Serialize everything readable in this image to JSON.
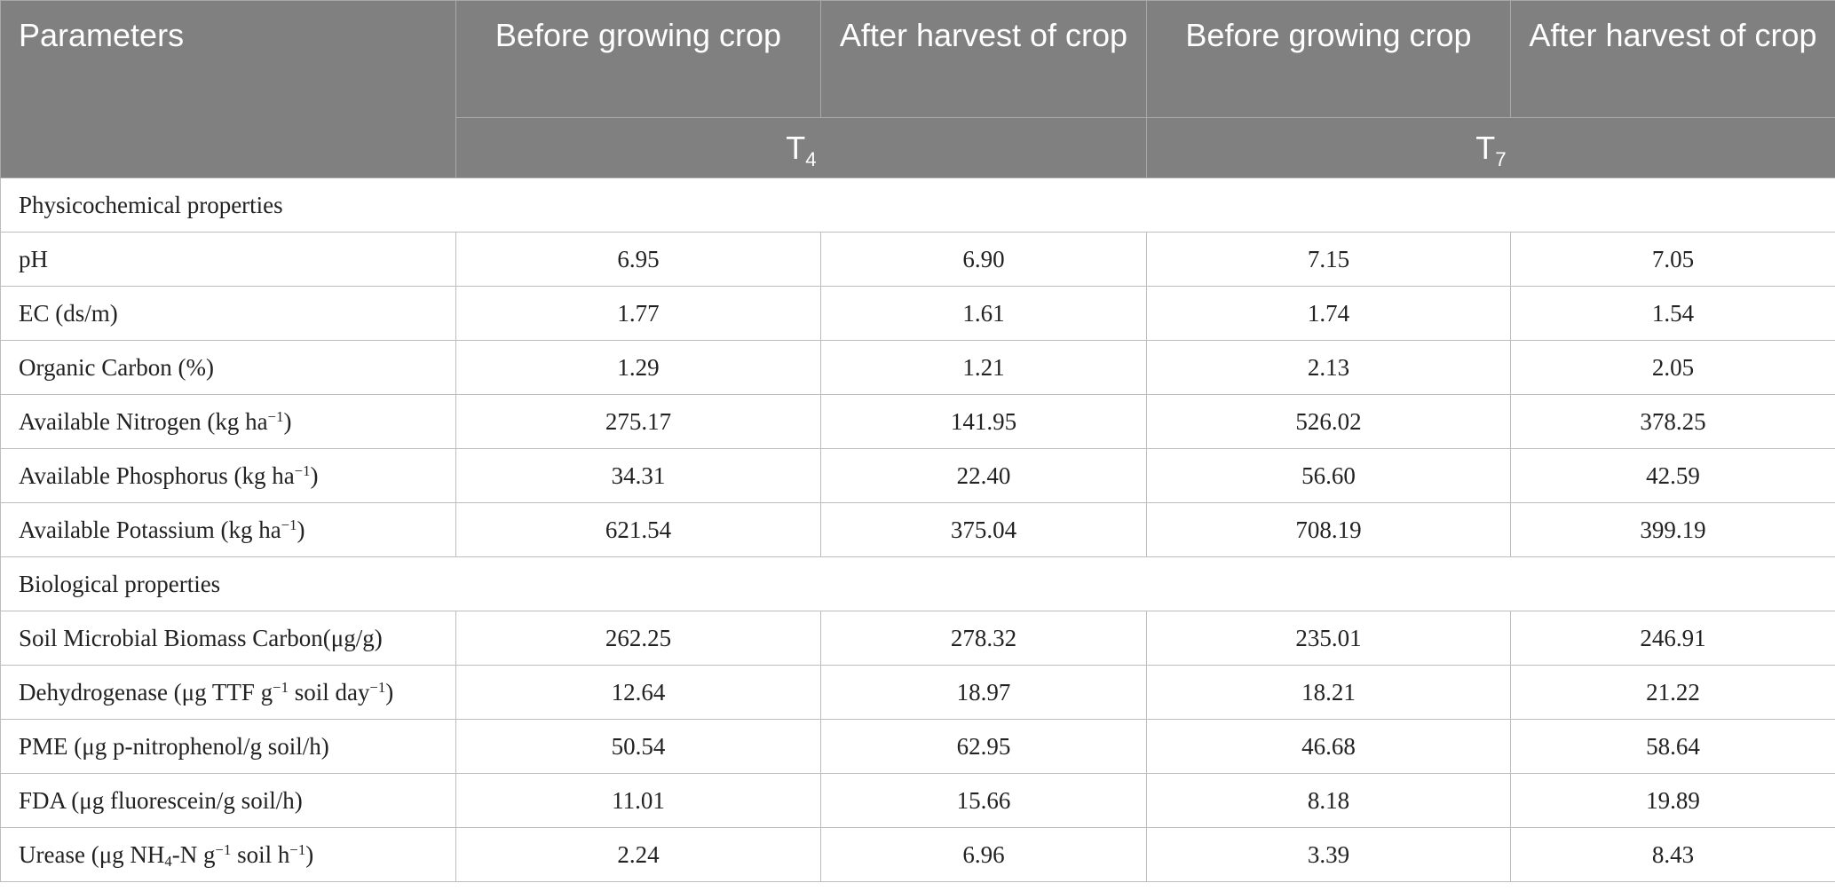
{
  "header": {
    "parameters": "Parameters",
    "col1": "Before growing crop",
    "col2": "After harvest of crop",
    "col3": "Before growing crop",
    "col4": "After harvest of crop",
    "group1_base": "T",
    "group1_sub": "4",
    "group2_base": "T",
    "group2_sub": "7"
  },
  "sections": {
    "physicochemical": "Physicochemical properties",
    "biological": "Biological properties"
  },
  "labels": {
    "ph": "pH",
    "ec": "EC (ds/m)",
    "oc": "Organic Carbon (%)",
    "avail_n_pre": "Available Nitrogen (kg ha",
    "avail_p_pre": "Available Phosphorus (kg ha",
    "avail_k_pre": "Available Potassium (kg ha",
    "exp_neg1": "−1",
    "close": ")",
    "smbc": "Soil Microbial Biomass Carbon(μg/g)",
    "dehyd_pre": "Dehydrogenase (μg TTF g",
    "dehyd_mid": " soil day",
    "pme": "PME (μg p-nitrophenol/g soil/h)",
    "fda": "FDA (μg fluorescein/g soil/h)",
    "urease_pre": "Urease (μg NH",
    "urease_sub": "4",
    "urease_mid1": "-N g",
    "urease_mid2": " soil h"
  },
  "rows": [
    {
      "key": "ph",
      "values": [
        "6.95",
        "6.90",
        "7.15",
        "7.05"
      ]
    },
    {
      "key": "ec",
      "values": [
        "1.77",
        "1.61",
        "1.74",
        "1.54"
      ]
    },
    {
      "key": "oc",
      "values": [
        "1.29",
        "1.21",
        "2.13",
        "2.05"
      ]
    },
    {
      "key": "avail_n",
      "values": [
        "275.17",
        "141.95",
        "526.02",
        "378.25"
      ]
    },
    {
      "key": "avail_p",
      "values": [
        "34.31",
        "22.40",
        "56.60",
        "42.59"
      ]
    },
    {
      "key": "avail_k",
      "values": [
        "621.54",
        "375.04",
        "708.19",
        "399.19"
      ]
    },
    {
      "key": "smbc",
      "values": [
        "262.25",
        "278.32",
        "235.01",
        "246.91"
      ]
    },
    {
      "key": "dehyd",
      "values": [
        "12.64",
        "18.97",
        "18.21",
        "21.22"
      ]
    },
    {
      "key": "pme",
      "values": [
        "50.54",
        "62.95",
        "46.68",
        "58.64"
      ]
    },
    {
      "key": "fda",
      "values": [
        "11.01",
        "15.66",
        "8.18",
        "19.89"
      ]
    },
    {
      "key": "urease",
      "values": [
        "2.24",
        "6.96",
        "3.39",
        "8.43"
      ]
    }
  ]
}
